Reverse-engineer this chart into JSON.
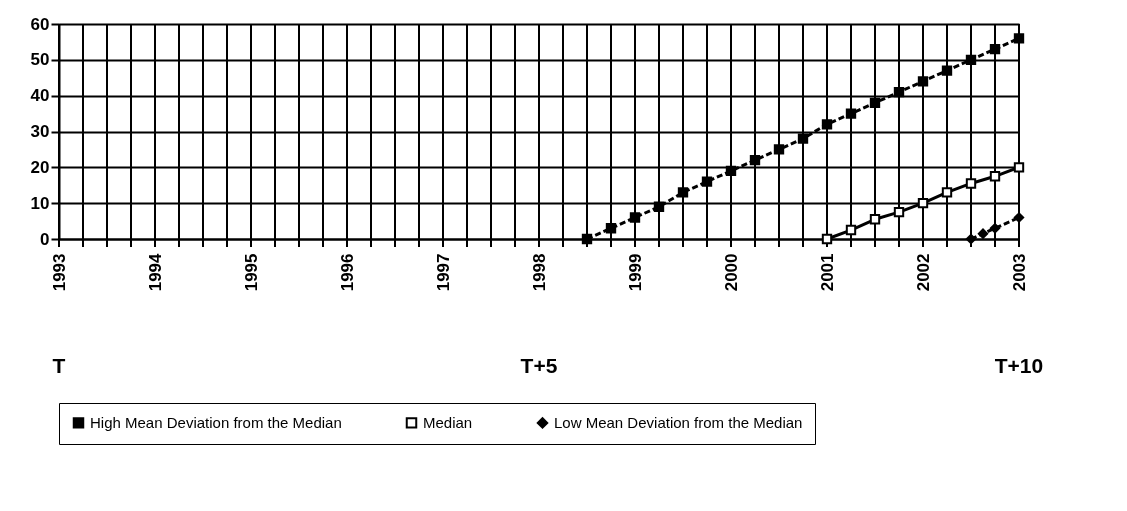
{
  "chart_data": {
    "type": "line",
    "xlim": [
      1993,
      2003
    ],
    "xticks": [
      1993,
      {
        "value": 1993.25,
        "label": null
      },
      {
        "value": 1993.5,
        "label": null
      },
      {
        "value": 1993.75,
        "label": null
      },
      1994,
      {
        "value": 1994.25,
        "label": null
      },
      {
        "value": 1994.5,
        "label": null
      },
      {
        "value": 1994.75,
        "label": null
      },
      1995,
      {
        "value": 1995.25,
        "label": null
      },
      {
        "value": 1995.5,
        "label": null
      },
      {
        "value": 1995.75,
        "label": null
      },
      1996,
      {
        "value": 1996.25,
        "label": null
      },
      {
        "value": 1996.5,
        "label": null
      },
      {
        "value": 1996.75,
        "label": null
      },
      1997,
      {
        "value": 1997.25,
        "label": null
      },
      {
        "value": 1997.5,
        "label": null
      },
      {
        "value": 1997.75,
        "label": null
      },
      1998,
      {
        "value": 1998.25,
        "label": null
      },
      {
        "value": 1998.5,
        "label": null
      },
      {
        "value": 1998.75,
        "label": null
      },
      1999,
      {
        "value": 1999.25,
        "label": null
      },
      {
        "value": 1999.5,
        "label": null
      },
      {
        "value": 1999.75,
        "label": null
      },
      2000,
      {
        "value": 2000.25,
        "label": null
      },
      {
        "value": 2000.5,
        "label": null
      },
      {
        "value": 2000.75,
        "label": null
      },
      2001,
      {
        "value": 2001.25,
        "label": null
      },
      {
        "value": 2001.5,
        "label": null
      },
      {
        "value": 2001.75,
        "label": null
      },
      2002,
      {
        "value": 2002.25,
        "label": null
      },
      {
        "value": 2002.5,
        "label": null
      },
      {
        "value": 2002.75,
        "label": null
      },
      2003
    ],
    "ylim": [
      0,
      60
    ],
    "yticks": [
      0,
      10,
      20,
      30,
      40,
      50,
      60
    ],
    "grid": true,
    "legend": "bottom",
    "series": [
      {
        "name": "High Mean Deviation from the Median",
        "color": "#000000",
        "marker": "square",
        "line_style": "dashed",
        "x": [
          1998.5,
          1998.75,
          1999,
          1999.25,
          1999.5,
          1999.75,
          2000,
          2000.25,
          2000.5,
          2000.75,
          2001,
          2001.25,
          2001.5,
          2001.75,
          2002,
          2002.25,
          2002.5,
          2002.75,
          2003
        ],
        "values": [
          0,
          3,
          6,
          9,
          13,
          16,
          19,
          22,
          25,
          28,
          32,
          35,
          38,
          41,
          44,
          47,
          50,
          53,
          56
        ]
      },
      {
        "name": "Median",
        "color": "#000000",
        "marker": "square",
        "line_style": "solid",
        "x": [
          2001,
          2001.25,
          2001.5,
          2001.75,
          2002,
          2002.25,
          2002.5,
          2002.75,
          2003
        ],
        "values": [
          0,
          2.5,
          5.5,
          7.5,
          10,
          13,
          15.5,
          17.5,
          20
        ]
      },
      {
        "name": "Low Mean Deviation from the Median",
        "color": "#000000",
        "marker": "diamond",
        "line_style": "dashed",
        "x": [
          2002.5,
          2002.625,
          2002.75,
          2003
        ],
        "values": [
          0,
          1.5,
          3,
          6
        ]
      }
    ],
    "annotations": [
      "T",
      "T+5",
      "T+10"
    ]
  }
}
